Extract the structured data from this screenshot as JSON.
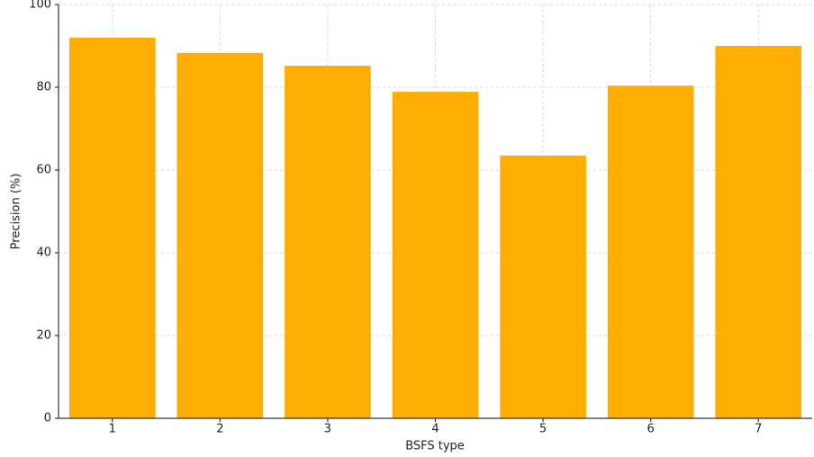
{
  "chart_data": {
    "type": "bar",
    "x_label": "BSFS type",
    "y_label": "Precision (%)",
    "categories": [
      "1",
      "2",
      "3",
      "4",
      "5",
      "6",
      "7"
    ],
    "values": [
      92.0,
      88.3,
      85.2,
      78.9,
      63.5,
      80.4,
      90.0
    ],
    "color": "#ffae00",
    "ylim": [
      0,
      100
    ],
    "yticks": [
      0,
      20,
      40,
      60,
      80,
      100
    ],
    "grid": true
  }
}
